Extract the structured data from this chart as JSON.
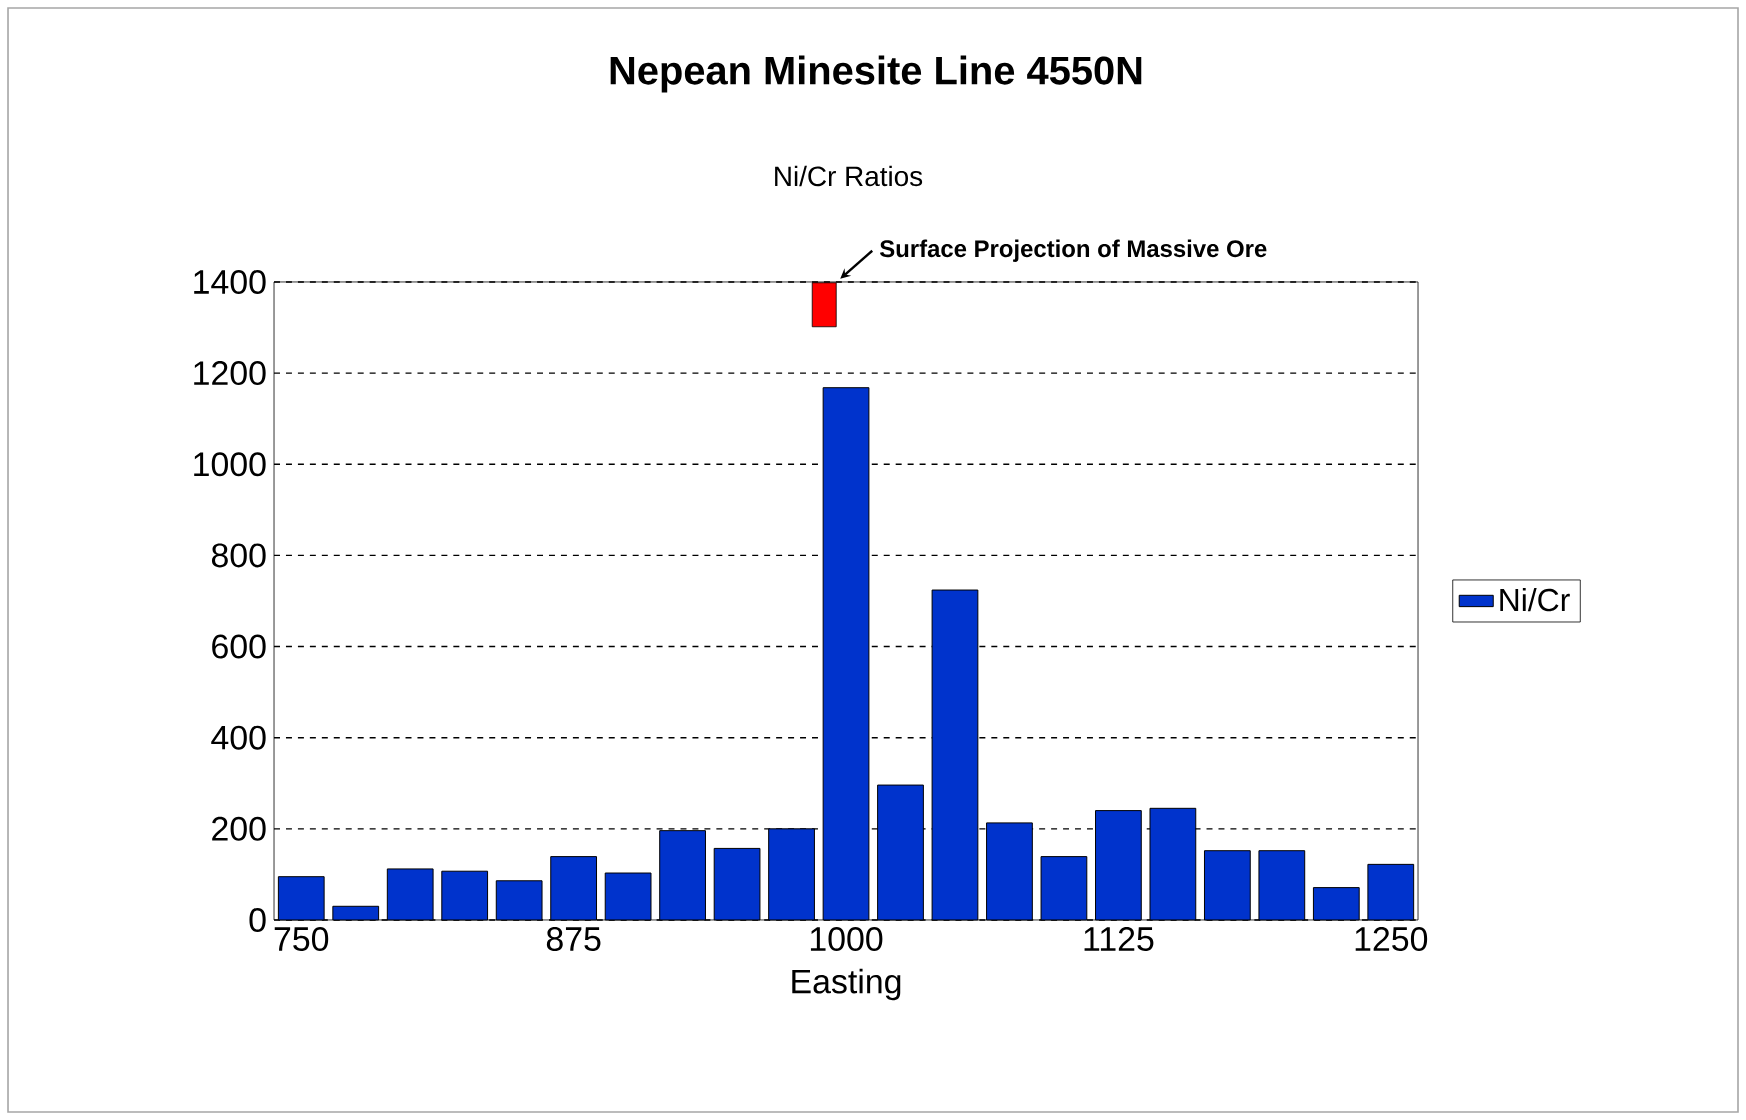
{
  "chart_data": {
    "type": "bar",
    "title": "Nepean Minesite Line 4550N",
    "subtitle": "Ni/Cr Ratios",
    "xlabel": "Easting",
    "x": [
      750,
      775,
      800,
      825,
      850,
      875,
      900,
      925,
      950,
      975,
      1000,
      1025,
      1050,
      1075,
      1100,
      1125,
      1150,
      1175,
      1200,
      1225,
      1250
    ],
    "series": [
      {
        "name": "Ni/Cr",
        "color": "#0033cc",
        "values": [
          95,
          30,
          112,
          107,
          86,
          139,
          103,
          196,
          157,
          200,
          1168,
          296,
          724,
          213,
          139,
          240,
          245,
          152,
          152,
          71,
          122
        ]
      }
    ],
    "xlim": [
      737.5,
      1262.5
    ],
    "xticks": [
      750,
      875,
      1000,
      1125,
      1250
    ],
    "ylim": [
      0,
      1400
    ],
    "yticks": [
      0,
      200,
      400,
      600,
      800,
      1000,
      1200,
      1400
    ],
    "grid": "y",
    "legend": "right",
    "annotations": [
      {
        "text": "Surface Projection of Massive Ore",
        "x": 990,
        "y": 1350
      }
    ]
  }
}
